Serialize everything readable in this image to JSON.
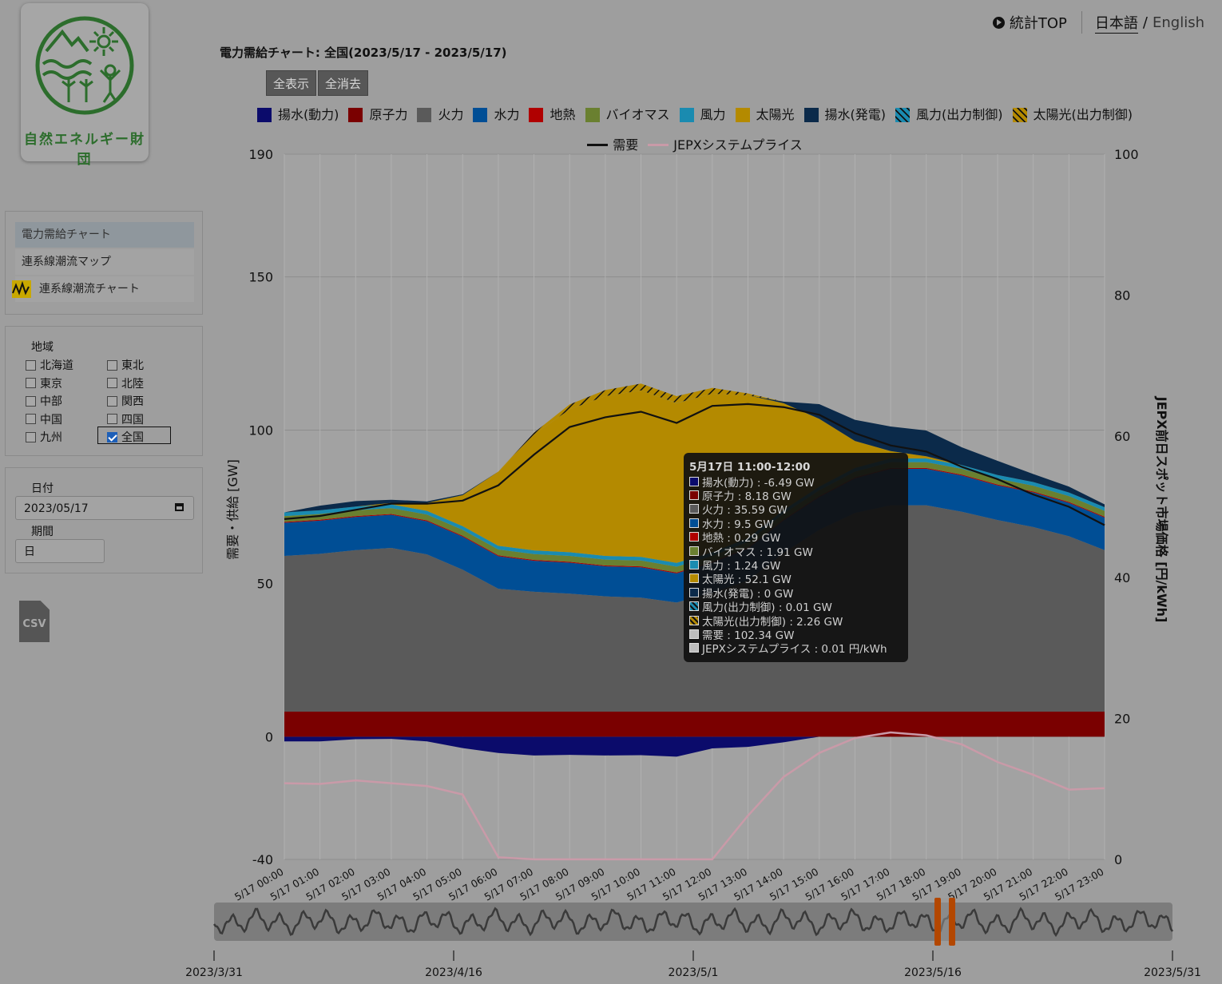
{
  "logo": {
    "text": "自然エネルギー財団"
  },
  "nav": {
    "stats": "統計TOP",
    "lang_ja": "日本語",
    "slash": "/",
    "lang_en": "English"
  },
  "title": "電力需給チャート: 全国(2023/5/17 - 2023/5/17)",
  "buttons": {
    "show_all": "全表示",
    "hide_all": "全消去"
  },
  "menu": {
    "items": [
      "電力需給チャート",
      "連系線潮流マップ",
      "連系線潮流チャート"
    ]
  },
  "region": {
    "label": "地域",
    "options": [
      {
        "name": "北海道",
        "checked": false
      },
      {
        "name": "東北",
        "checked": false
      },
      {
        "name": "東京",
        "checked": false
      },
      {
        "name": "北陸",
        "checked": false
      },
      {
        "name": "中部",
        "checked": false
      },
      {
        "name": "関西",
        "checked": false
      },
      {
        "name": "中国",
        "checked": false
      },
      {
        "name": "四国",
        "checked": false
      },
      {
        "name": "九州",
        "checked": false
      },
      {
        "name": "全国",
        "checked": true
      }
    ]
  },
  "date": {
    "label": "日付",
    "value": "2023/05/17",
    "period_label": "期間",
    "period_value": "日"
  },
  "csv": {
    "label": "CSV",
    "icon": "csv-file-icon"
  },
  "chart_data": {
    "type": "area",
    "x": [
      "5/17 00:00",
      "5/17 01:00",
      "5/17 02:00",
      "5/17 03:00",
      "5/17 04:00",
      "5/17 05:00",
      "5/17 06:00",
      "5/17 07:00",
      "5/17 08:00",
      "5/17 09:00",
      "5/17 10:00",
      "5/17 11:00",
      "5/17 12:00",
      "5/17 13:00",
      "5/17 14:00",
      "5/17 15:00",
      "5/17 16:00",
      "5/17 17:00",
      "5/17 18:00",
      "5/17 19:00",
      "5/17 20:00",
      "5/17 21:00",
      "5/17 22:00",
      "5/17 23:00"
    ],
    "ylabel": "需要・供給 [GW]",
    "y2label": "JEPX前日スポット市場価格 [円/kWh]",
    "ylim": [
      -40,
      190
    ],
    "y2lim": [
      0,
      100
    ],
    "yticks": [
      190,
      150,
      100,
      50,
      0,
      -40
    ],
    "y2ticks": [
      100,
      80,
      60,
      40,
      20,
      0
    ],
    "legend": {
      "position": "top"
    },
    "series": [
      {
        "name": "揚水(動力)",
        "color": "#0b0b6b",
        "values": [
          -1.5,
          -1.5,
          -0.8,
          -0.7,
          -1.5,
          -3.7,
          -5.3,
          -6.1,
          -5.9,
          -6.1,
          -6.0,
          -6.49,
          -3.8,
          -3.3,
          -1.8,
          0,
          0,
          0,
          0,
          0,
          0,
          0,
          0,
          0
        ]
      },
      {
        "name": "原子力",
        "color": "#7a0000",
        "values": [
          8.18,
          8.18,
          8.18,
          8.18,
          8.18,
          8.18,
          8.18,
          8.18,
          8.18,
          8.18,
          8.18,
          8.18,
          8.18,
          8.18,
          8.18,
          8.18,
          8.18,
          8.18,
          8.18,
          8.18,
          8.18,
          8.18,
          8.18,
          8.18
        ]
      },
      {
        "name": "火力",
        "color": "#5a5a5a",
        "values": [
          50.8,
          51.5,
          52.7,
          53.4,
          51.3,
          46.3,
          40.1,
          39.1,
          38.5,
          37.6,
          37.2,
          35.59,
          38.8,
          42.8,
          51.8,
          59.3,
          64.8,
          67.3,
          67.3,
          65.2,
          62.5,
          60.2,
          57.2,
          52.7
        ]
      },
      {
        "name": "水力",
        "color": "#004e95",
        "values": [
          10.8,
          10.8,
          10.8,
          10.8,
          10.8,
          10.8,
          10.6,
          10.1,
          10.1,
          9.8,
          9.9,
          9.5,
          9.8,
          10.4,
          10.6,
          10.7,
          11.3,
          11.9,
          11.9,
          11.8,
          11.3,
          11.3,
          10.9,
          10.6
        ]
      },
      {
        "name": "地熱",
        "color": "#b00000",
        "values": [
          0.29,
          0.29,
          0.29,
          0.29,
          0.29,
          0.29,
          0.29,
          0.29,
          0.29,
          0.29,
          0.29,
          0.29,
          0.29,
          0.29,
          0.29,
          0.29,
          0.29,
          0.29,
          0.29,
          0.29,
          0.29,
          0.29,
          0.29,
          0.29
        ]
      },
      {
        "name": "バイオマス",
        "color": "#6a8030",
        "values": [
          1.9,
          1.9,
          1.9,
          1.9,
          1.9,
          1.9,
          1.9,
          1.9,
          1.9,
          1.9,
          1.9,
          1.91,
          1.9,
          1.9,
          1.9,
          1.9,
          1.9,
          1.9,
          1.9,
          1.9,
          1.9,
          1.9,
          1.9,
          1.9
        ]
      },
      {
        "name": "風力",
        "color": "#1a8bb0",
        "values": [
          1.2,
          1.2,
          1.2,
          1.2,
          1.2,
          1.2,
          1.2,
          1.2,
          1.2,
          1.2,
          1.2,
          1.24,
          1.2,
          1.2,
          1.2,
          1.2,
          1.2,
          1.2,
          1.2,
          1.2,
          1.2,
          1.2,
          1.2,
          1.2
        ]
      },
      {
        "name": "太陽光",
        "color": "#b48a00",
        "values": [
          0,
          0,
          0,
          0.5,
          2.6,
          10.1,
          24.2,
          37.8,
          46.6,
          52.1,
          54.3,
          52.1,
          51.7,
          46.6,
          34.8,
          22.1,
          8.8,
          2.4,
          0.7,
          0,
          0,
          0,
          0,
          0
        ]
      },
      {
        "name": "揚水(発電)",
        "color": "#0b2a4a",
        "values": [
          0,
          1.5,
          1.8,
          1.0,
          0.5,
          0.3,
          0,
          0,
          0,
          0,
          0,
          0,
          0,
          0,
          0.5,
          4.8,
          6.9,
          8.0,
          8.4,
          5.8,
          4.6,
          2.6,
          1.9,
          0.9
        ]
      },
      {
        "name": "風力(出力制御)",
        "color": "#1a8bb0",
        "values": [
          0,
          0,
          0,
          0,
          0,
          0,
          0,
          0,
          0,
          0,
          0,
          0.01,
          0,
          0,
          0,
          0,
          0,
          0,
          0,
          0,
          0,
          0,
          0,
          0
        ]
      },
      {
        "name": "太陽光(出力制御)",
        "color": "#b48a00",
        "values": [
          0,
          0,
          0,
          0,
          0,
          0,
          0,
          0.6,
          1.6,
          2.0,
          2.2,
          2.26,
          1.9,
          0.6,
          0,
          0,
          0,
          0,
          0,
          0,
          0,
          0,
          0,
          0
        ]
      },
      {
        "name": "需要",
        "color": "#111111",
        "type": "line",
        "values": [
          71,
          72,
          74,
          76,
          76,
          77,
          82,
          92,
          101,
          104.2,
          106,
          102.34,
          107.9,
          108.5,
          107.5,
          105,
          99,
          95,
          93,
          88,
          84,
          79,
          75,
          69
        ]
      },
      {
        "name": "JEPXシステムプライス",
        "color": "#c99aa8",
        "type": "line",
        "axis": "right",
        "values": [
          10.8,
          10.7,
          11.2,
          10.8,
          10.4,
          9.2,
          0.3,
          0.01,
          0.01,
          0.01,
          0.01,
          0.01,
          0.01,
          6.2,
          11.7,
          15.1,
          17.2,
          18.0,
          17.6,
          16.3,
          13.8,
          12.0,
          9.9,
          10.1
        ]
      }
    ],
    "tooltip": {
      "title": "5月17日 11:00-12:00",
      "rows": [
        {
          "color": "#0b0b6b",
          "text": "揚水(動力) : -6.49 GW"
        },
        {
          "color": "#7a0000",
          "text": "原子力 : 8.18 GW"
        },
        {
          "color": "#5a5a5a",
          "text": "火力 : 35.59 GW"
        },
        {
          "color": "#004e95",
          "text": "水力 : 9.5 GW"
        },
        {
          "color": "#b00000",
          "text": "地熱 : 0.29 GW"
        },
        {
          "color": "#6a8030",
          "text": "バイオマス : 1.91 GW"
        },
        {
          "color": "#1a8bb0",
          "text": "風力 : 1.24 GW"
        },
        {
          "color": "#b48a00",
          "text": "太陽光 : 52.1 GW"
        },
        {
          "color": "#0b2a4a",
          "text": "揚水(発電) : 0 GW"
        },
        {
          "color": "#1a8bb0",
          "text": "風力(出力制御) : 0.01 GW"
        },
        {
          "color": "#b48a00",
          "text": "太陽光(出力制御) : 2.26 GW"
        },
        {
          "color": "#bdbdbd",
          "text": "需要 : 102.34 GW"
        },
        {
          "color": "#bdbdbd",
          "text": "JEPXシステムプライス : 0.01 円/kWh"
        }
      ]
    },
    "navigator": {
      "labels": [
        "2023/3/31",
        "2023/4/16",
        "2023/5/1",
        "2023/5/16",
        "2023/5/31"
      ],
      "range_start": 0.755,
      "range_end": 0.77
    }
  }
}
